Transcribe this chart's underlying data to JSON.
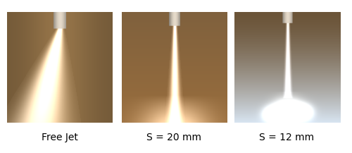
{
  "panel_labels": [
    "Free Jet",
    "S = 20 mm",
    "S = 12 mm"
  ],
  "fig_width": 5.0,
  "fig_height": 2.17,
  "dpi": 100,
  "bg_color": "#ffffff",
  "label_fontsize": 10,
  "label_color": "#000000",
  "border_color": "#cccccc",
  "panel_bg_colors": [
    "#7a6550",
    "#8a6f52",
    "#9a8870"
  ],
  "panel_count": 3
}
